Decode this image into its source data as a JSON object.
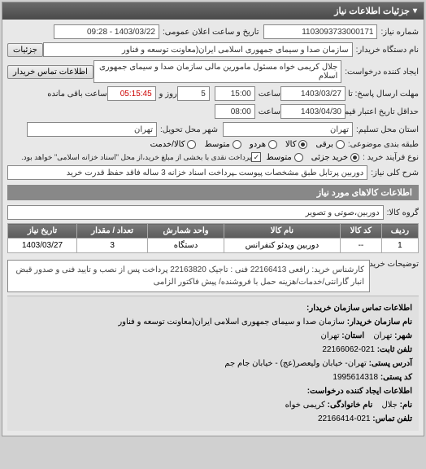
{
  "panel": {
    "title": "جزئیات اطلاعات نیاز"
  },
  "req": {
    "number_label": "شماره نیاز:",
    "number": "1103093733000171",
    "announce_label": "تاریخ و ساعت اعلان عمومی:",
    "announce": "1403/03/22 - 09:28",
    "buyer_label": "نام دستگاه خریدار:",
    "buyer": "سازمان صدا و سیمای جمهوری اسلامی ایران(معاونت توسعه و فناور",
    "details_btn": "جزئیات",
    "creator_label": "ایجاد کننده درخواست:",
    "creator": "جلال کریمی خواه مسئول مامورین مالی   سازمان صدا و سیمای جمهوری اسلام",
    "contact_btn": "اطلاعات تماس خریدار",
    "deadline_label": "مهلت ارسال پاسخ: تا تاریخ:",
    "deadline_date": "1403/03/27",
    "deadline_time_lbl": "ساعت",
    "deadline_time": "15:00",
    "days_remain_lbl": "روز و",
    "days_remain": "5",
    "time_remain": "05:15:45",
    "time_remain_lbl": "ساعت باقی مانده",
    "validity_label": "حداقل تاریخ اعتبار قیمت: تا تاریخ:",
    "validity_date": "1403/04/30",
    "validity_time_lbl": "ساعت",
    "validity_time": "08:00",
    "province_label": "استان محل تسلیم:",
    "province": "تهران",
    "city_label": "شهر محل تحویل:",
    "city": "تهران",
    "class_label": "طبقه بندی موضوعی:",
    "r1": "برقی",
    "r2": "کالا",
    "r3": "هردو",
    "r4": "متوسط",
    "r5": "کالا/خدمت",
    "purchase_label": "نوع فرآیند خرید :",
    "p1": "خرید جزئی",
    "p2": "متوسط",
    "purchase_note": "پرداخت نقدی با بخشی از مبلغ خرید،از محل \"اسناد خزانه اسلامی\" خواهد بود.",
    "desc_label": "شرح کلی نیاز:",
    "desc": "دوربین پرتابل طبق مشخصات پیوست ـپرداخت اسناد خزانه 3 ساله فاقد حفظ قدرت خرید"
  },
  "goods": {
    "title": "اطلاعات کالاهای مورد نیاز",
    "group_label": "گروه کالا:",
    "group": "دوربین،صوتی و تصویر",
    "columns": [
      "ردیف",
      "کد کالا",
      "نام کالا",
      "واحد شمارش",
      "تعداد / مقدار",
      "تاریخ نیاز"
    ],
    "rows": [
      [
        "1",
        "--",
        "دوربین ویدئو کنفرانس",
        "دستگاه",
        "3",
        "1403/03/27"
      ]
    ]
  },
  "notes": {
    "label": "توضیحات خریدار:",
    "text": "کارشناس خرید: رافعی 22166413 فنی : تاجیک 22163820 پرداخت پس از نصب و تایید فنی و صدور قبض انبار گارانتی/خدمات/هزینه حمل با فروشنده/ پیش فاکتور الزامی"
  },
  "contact": {
    "title": "اطلاعات تماس سازمان خریدار:",
    "org_label": "نام سازمان خریدار:",
    "org": "سازمان صدا و سیمای جمهوری اسلامی ایران(معاونت توسعه و فناور",
    "city_label": "شهر:",
    "city": "تهران",
    "province_label": "استان:",
    "province": "تهران",
    "phone_label": "تلفن ثابت:",
    "phone": "021-22166062",
    "address_label": "آدرس پستی:",
    "address": "تهران- خیابان ولیعصر(عج) - خیابان جام جم",
    "postcode_label": "کد پستی:",
    "postcode": "1995614318",
    "sub_title": "اطلاعات ایجاد کننده درخواست:",
    "name_label": "نام:",
    "name": "جلال",
    "family_label": "نام خانوادگی:",
    "family": "کریمی خواه",
    "tel_label": "تلفن تماس:",
    "tel": "021-22166414"
  }
}
